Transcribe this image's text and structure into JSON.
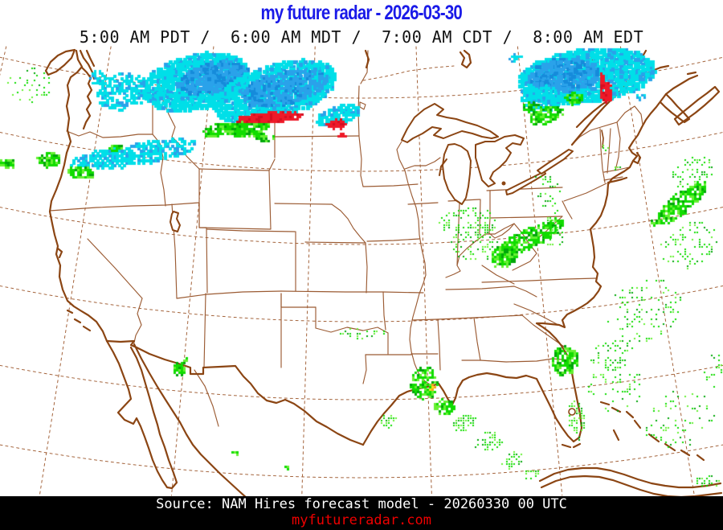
{
  "header": {
    "title": "my future radar - 2026-03-30",
    "valid_times": "5:00 AM PDT /  6:00 AM MDT /  7:00 AM CDT /  8:00 AM EDT"
  },
  "footer": {
    "source": "Source: NAM Hires forecast model - 20260330 00 UTC",
    "website": "myfutureradar.com"
  },
  "colors": {
    "title_blue": "#1A1AE8",
    "footer_bg": "#000000",
    "footer_text": "#FFFFFF",
    "website_red": "#EE0000",
    "coast_brown": "#8B4513",
    "state_line_brown": "#9B5B33",
    "graticule_brown": "#A4643C",
    "precip_rain_green": "#11DC00",
    "precip_rain_green_light": "#66F033",
    "precip_rain_green_dark": "#00A60A",
    "precip_snow_cyan": "#00DFE8",
    "precip_snow_blue": "#2AA2EA",
    "precip_snow_blue_dark": "#158BDB",
    "precip_mix_red": "#EE1A28",
    "precip_mix_red_dark": "#D40E20",
    "precip_heavy_orange": "#F6A51C",
    "precip_heavy_yellow": "#F4E320"
  },
  "precipitation": {
    "format": [
      "type",
      "cx",
      "cy",
      "rx",
      "ry",
      "rot_deg",
      "count",
      "pixel",
      "seed"
    ],
    "cells": [
      [
        "c",
        242,
        100,
        68,
        34,
        -12,
        1500,
        5,
        11
      ],
      [
        "b",
        262,
        95,
        44,
        17,
        -12,
        420,
        5,
        12
      ],
      [
        "c",
        150,
        112,
        34,
        22,
        -8,
        230,
        4,
        13
      ],
      [
        "c",
        165,
        190,
        78,
        14,
        -9,
        420,
        4,
        14
      ],
      [
        "g",
        60,
        197,
        14,
        9,
        0,
        90,
        3,
        15
      ],
      [
        "g",
        8,
        202,
        10,
        6,
        0,
        45,
        3,
        16
      ],
      [
        "g",
        100,
        213,
        16,
        8,
        10,
        80,
        3,
        17
      ],
      [
        "g",
        143,
        183,
        8,
        5,
        0,
        28,
        3,
        18
      ],
      [
        "g",
        35,
        105,
        28,
        22,
        0,
        42,
        2,
        19
      ],
      [
        "c",
        120,
        95,
        14,
        8,
        0,
        30,
        3,
        20
      ],
      [
        "c",
        340,
        112,
        78,
        33,
        -17,
        1400,
        5,
        21
      ],
      [
        "b",
        352,
        108,
        55,
        20,
        -13,
        500,
        4,
        22
      ],
      [
        "c",
        420,
        142,
        28,
        11,
        -15,
        170,
        4,
        23
      ],
      [
        "g",
        308,
        157,
        27,
        11,
        -6,
        260,
        3,
        24
      ],
      [
        "g",
        273,
        161,
        22,
        9,
        -8,
        120,
        3,
        25
      ],
      [
        "r",
        335,
        145,
        42,
        6,
        -3,
        280,
        3,
        26
      ],
      [
        "r",
        418,
        153,
        12,
        6,
        0,
        60,
        3,
        27
      ],
      [
        "r",
        424,
        167,
        4,
        3,
        0,
        10,
        3,
        28
      ],
      [
        "g",
        330,
        170,
        12,
        4,
        0,
        25,
        3,
        29
      ],
      [
        "c",
        728,
        92,
        85,
        33,
        -7,
        1600,
        5,
        31
      ],
      [
        "b",
        700,
        91,
        44,
        20,
        -4,
        460,
        5,
        32
      ],
      [
        "c",
        673,
        121,
        25,
        16,
        0,
        210,
        4,
        33
      ],
      [
        "g",
        678,
        142,
        22,
        10,
        -15,
        140,
        3,
        34
      ],
      [
        "g",
        712,
        121,
        12,
        7,
        0,
        45,
        3,
        35
      ],
      [
        "g",
        660,
        132,
        10,
        6,
        0,
        28,
        3,
        36
      ],
      [
        "r",
        753,
        114,
        8,
        13,
        0,
        90,
        3,
        37
      ],
      [
        "r",
        749,
        94,
        4,
        8,
        0,
        16,
        3,
        38
      ],
      [
        "c",
        797,
        119,
        6,
        4,
        0,
        12,
        3,
        39
      ],
      [
        "c",
        640,
        70,
        8,
        5,
        0,
        12,
        3,
        30
      ],
      [
        "g",
        656,
        296,
        50,
        12,
        -27,
        330,
        3,
        41
      ],
      [
        "g",
        627,
        317,
        18,
        12,
        -20,
        150,
        3,
        42
      ],
      [
        "g",
        590,
        300,
        30,
        25,
        0,
        65,
        2,
        43
      ],
      [
        "g",
        688,
        288,
        14,
        20,
        0,
        40,
        2,
        44
      ],
      [
        "g",
        582,
        276,
        38,
        20,
        0,
        85,
        2,
        45
      ],
      [
        "g",
        672,
        220,
        6,
        5,
        0,
        8,
        2,
        46
      ],
      [
        "g",
        683,
        247,
        14,
        28,
        0,
        32,
        2,
        47
      ],
      [
        "g",
        753,
        183,
        5,
        4,
        0,
        6,
        2,
        48
      ],
      [
        "g",
        845,
        252,
        42,
        12,
        -38,
        250,
        3,
        51
      ],
      [
        "g",
        858,
        302,
        38,
        28,
        -30,
        85,
        2,
        52
      ],
      [
        "g",
        800,
        385,
        48,
        38,
        -25,
        100,
        2,
        53
      ],
      [
        "g",
        762,
        440,
        28,
        20,
        -20,
        48,
        2,
        54
      ],
      [
        "g",
        862,
        213,
        28,
        18,
        -25,
        60,
        2,
        55
      ],
      [
        "g",
        768,
        208,
        5,
        4,
        0,
        6,
        2,
        56
      ],
      [
        "g",
        702,
        447,
        16,
        18,
        0,
        170,
        3,
        61
      ],
      [
        "g",
        717,
        520,
        10,
        26,
        -10,
        55,
        2,
        62
      ],
      [
        "g",
        765,
        480,
        35,
        30,
        0,
        55,
        2,
        63
      ],
      [
        "g",
        845,
        520,
        45,
        35,
        -20,
        65,
        2,
        64
      ],
      [
        "g",
        878,
        598,
        16,
        9,
        0,
        22,
        2,
        65
      ],
      [
        "g",
        893,
        458,
        18,
        24,
        0,
        28,
        2,
        66
      ],
      [
        "g",
        527,
        475,
        17,
        20,
        0,
        160,
        3,
        67
      ],
      [
        "o",
        537,
        480,
        4,
        4,
        0,
        6,
        3,
        68
      ],
      [
        "g",
        552,
        505,
        12,
        10,
        0,
        55,
        3,
        69
      ],
      [
        "g",
        577,
        525,
        14,
        10,
        -20,
        48,
        2,
        70
      ],
      [
        "g",
        607,
        548,
        17,
        11,
        -20,
        42,
        2,
        71
      ],
      [
        "g",
        637,
        571,
        14,
        9,
        -20,
        33,
        2,
        72
      ],
      [
        "g",
        661,
        589,
        10,
        6,
        -20,
        20,
        2,
        73
      ],
      [
        "g",
        483,
        522,
        12,
        8,
        0,
        25,
        2,
        74
      ],
      [
        "g",
        450,
        413,
        30,
        6,
        0,
        26,
        2,
        75
      ],
      [
        "g",
        357,
        578,
        4,
        3,
        0,
        8,
        3,
        76
      ],
      [
        "g",
        291,
        561,
        4,
        3,
        0,
        6,
        3,
        77
      ],
      [
        "g",
        222,
        457,
        7,
        9,
        0,
        38,
        3,
        78
      ],
      [
        "g",
        230,
        447,
        3,
        3,
        0,
        5,
        3,
        79
      ]
    ]
  }
}
